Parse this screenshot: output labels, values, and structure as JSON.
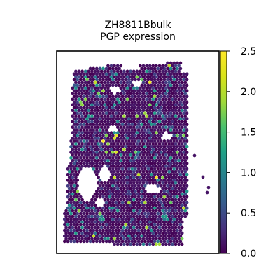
{
  "chart_data": {
    "type": "scatter",
    "title_line1": "ZH8811Bbulk",
    "title_line2": "PGP expression",
    "xlabel": "",
    "ylabel": "",
    "colorbar": {
      "colormap": "viridis",
      "range": [
        0.0,
        2.5
      ],
      "ticks": [
        "0.0",
        "0.5",
        "1.0",
        "1.5",
        "2.0",
        "2.5"
      ],
      "tick_values": [
        0.0,
        0.5,
        1.0,
        1.5,
        2.0,
        2.5
      ]
    },
    "frame": true,
    "grid": false,
    "spot_value_distribution": {
      "predominant": 0.1,
      "frequent_low": 0.5,
      "occasional_mid": 1.0,
      "rare_high": 1.9,
      "max": 2.5
    },
    "colors": {
      "viridis_0.0": "#440154",
      "viridis_0.25": "#3b528b",
      "viridis_0.5": "#21918c",
      "viridis_0.75": "#5ec962",
      "viridis_1.0": "#fde725"
    }
  }
}
